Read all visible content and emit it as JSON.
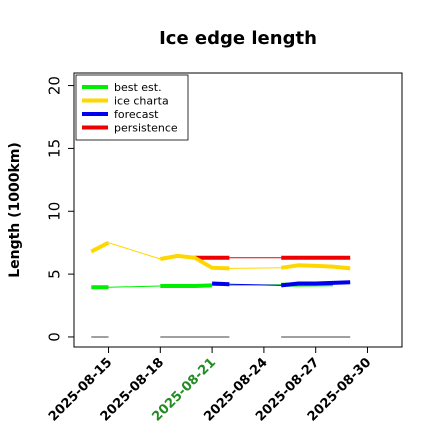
{
  "chart_data": {
    "type": "line",
    "title": "Ice edge length",
    "xlabel": "",
    "ylabel": "Length (1000km)",
    "ylim": [
      -0.8,
      21
    ],
    "xlim": [
      "2025-08-13",
      "2025-09-01"
    ],
    "y_ticks": [
      "0",
      "5",
      "10",
      "15",
      "20"
    ],
    "x_ticks": [
      {
        "label": "2025-08-15",
        "color": "#000000"
      },
      {
        "label": "2025-08-18",
        "color": "#000000"
      },
      {
        "label": "2025-08-21",
        "color": "#228b22"
      },
      {
        "label": "2025-08-24",
        "color": "#000000"
      },
      {
        "label": "2025-08-27",
        "color": "#000000"
      },
      {
        "label": "2025-08-30",
        "color": "#000000"
      }
    ],
    "grid": false,
    "legend": {
      "placement": "top-left",
      "entries": [
        "best est.",
        "ice charta",
        "forecast",
        "persistence"
      ]
    },
    "series": [
      {
        "name": "best est.",
        "color": "#00ee00",
        "segments": [
          {
            "points": [
              [
                "2025-08-14",
                3.95
              ],
              [
                "2025-08-15",
                3.95
              ]
            ],
            "style": "thick"
          },
          {
            "points": [
              [
                "2025-08-15",
                3.95
              ],
              [
                "2025-08-18",
                4.05
              ]
            ],
            "style": "thin"
          },
          {
            "points": [
              [
                "2025-08-18",
                4.05
              ],
              [
                "2025-08-20",
                4.05
              ],
              [
                "2025-08-21",
                4.1
              ]
            ],
            "style": "thick"
          },
          {
            "points": [
              [
                "2025-08-21",
                4.1
              ],
              [
                "2025-08-25",
                4.15
              ]
            ],
            "style": "thin"
          },
          {
            "points": [
              [
                "2025-08-25",
                4.15
              ],
              [
                "2025-08-28",
                4.2
              ]
            ],
            "style": "thick"
          }
        ]
      },
      {
        "name": "ice charta",
        "color": "#ffd700",
        "segments": [
          {
            "points": [
              [
                "2025-08-14",
                6.8
              ],
              [
                "2025-08-15",
                7.5
              ]
            ],
            "style": "thick"
          },
          {
            "points": [
              [
                "2025-08-15",
                7.5
              ],
              [
                "2025-08-18",
                6.2
              ]
            ],
            "style": "thin"
          },
          {
            "points": [
              [
                "2025-08-18",
                6.2
              ],
              [
                "2025-08-19",
                6.45
              ],
              [
                "2025-08-20",
                6.3
              ],
              [
                "2025-08-21",
                5.5
              ],
              [
                "2025-08-22",
                5.45
              ]
            ],
            "style": "thick"
          },
          {
            "points": [
              [
                "2025-08-22",
                5.45
              ],
              [
                "2025-08-25",
                5.5
              ]
            ],
            "style": "thin"
          },
          {
            "points": [
              [
                "2025-08-25",
                5.5
              ],
              [
                "2025-08-26",
                5.7
              ],
              [
                "2025-08-27",
                5.65
              ],
              [
                "2025-08-28",
                5.6
              ],
              [
                "2025-08-29",
                5.45
              ]
            ],
            "style": "thick"
          }
        ]
      },
      {
        "name": "forecast",
        "color": "#0000ee",
        "segments": [
          {
            "points": [
              [
                "2025-08-21",
                4.25
              ],
              [
                "2025-08-22",
                4.2
              ]
            ],
            "style": "thick"
          },
          {
            "points": [
              [
                "2025-08-22",
                4.2
              ],
              [
                "2025-08-25",
                4.1
              ]
            ],
            "style": "thin"
          },
          {
            "points": [
              [
                "2025-08-25",
                4.1
              ],
              [
                "2025-08-26",
                4.25
              ],
              [
                "2025-08-27",
                4.25
              ],
              [
                "2025-08-28",
                4.3
              ],
              [
                "2025-08-29",
                4.35
              ]
            ],
            "style": "thick"
          }
        ]
      },
      {
        "name": "persistence",
        "color": "#ee0000",
        "segments": [
          {
            "points": [
              [
                "2025-08-20",
                6.3
              ],
              [
                "2025-08-22",
                6.3
              ]
            ],
            "style": "thick"
          },
          {
            "points": [
              [
                "2025-08-22",
                6.3
              ],
              [
                "2025-08-25",
                6.3
              ]
            ],
            "style": "thin"
          },
          {
            "points": [
              [
                "2025-08-25",
                6.3
              ],
              [
                "2025-08-29",
                6.3
              ]
            ],
            "style": "thick"
          }
        ]
      }
    ],
    "baseline_segments": {
      "color": "#808080",
      "y": 0,
      "ranges": [
        [
          "2025-08-14",
          "2025-08-15"
        ],
        [
          "2025-08-18",
          "2025-08-22"
        ],
        [
          "2025-08-25",
          "2025-08-29"
        ]
      ]
    }
  }
}
